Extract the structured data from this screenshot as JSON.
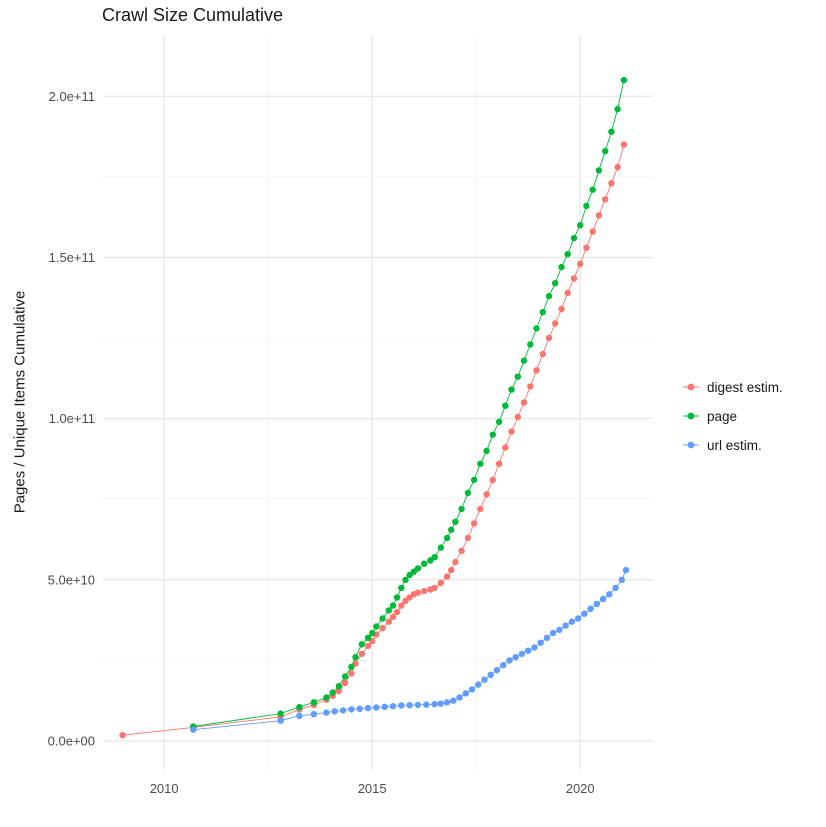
{
  "figure": {
    "title": "Crawl Size Cumulative",
    "y_axis_label": "Pages / Unique Items Cumulative"
  },
  "colors": {
    "background": "#ffffff",
    "grid_major": "#e3e3e3",
    "grid_minor": "#f0f0f0",
    "axis_text": "#4d4d4d",
    "title_text": "#1a1a1a"
  },
  "legend": {
    "items": [
      {
        "label": "digest estim.",
        "color": "#F8766D"
      },
      {
        "label": "page",
        "color": "#00BA38"
      },
      {
        "label": "url estim.",
        "color": "#619CFF"
      }
    ]
  },
  "chart_data": {
    "type": "scatter",
    "title": "Crawl Size Cumulative",
    "xlabel": "",
    "ylabel": "Pages / Unique Items Cumulative",
    "legend_position": "right",
    "grid": true,
    "xlim": [
      2008.53,
      2021.75
    ],
    "ylim": [
      -9000000000.0,
      219000000000.0
    ],
    "x_tick_values": [
      2010,
      2015,
      2020
    ],
    "x_tick_labels": [
      "2010",
      "2015",
      "2020"
    ],
    "x_minor_ticks": [
      2012.5,
      2017.5
    ],
    "y_tick_values": [
      0,
      50000000000.0,
      100000000000.0,
      150000000000.0,
      200000000000.0
    ],
    "y_tick_labels": [
      "0.0e+00",
      "5.0e+10",
      "1.0e+11",
      "1.5e+11",
      "2.0e+11"
    ],
    "y_minor_ticks": [
      25000000000.0,
      75000000000.0,
      125000000000.0,
      175000000000.0
    ],
    "series": [
      {
        "name": "digest estim.",
        "color": "#F8766D",
        "points": [
          [
            2009.0,
            1800000000.0
          ],
          [
            2010.7,
            4200000000.0
          ],
          [
            2012.8,
            7500000000.0
          ],
          [
            2013.25,
            9800000000.0
          ],
          [
            2013.6,
            11200000000.0
          ],
          [
            2013.9,
            12800000000.0
          ],
          [
            2014.05,
            14000000000.0
          ],
          [
            2014.2,
            15500000000.0
          ],
          [
            2014.35,
            18000000000.0
          ],
          [
            2014.5,
            21000000000.0
          ],
          [
            2014.6,
            24000000000.0
          ],
          [
            2014.75,
            27000000000.0
          ],
          [
            2014.9,
            29500000000.0
          ],
          [
            2015.0,
            31000000000.0
          ],
          [
            2015.1,
            33000000000.0
          ],
          [
            2015.25,
            35000000000.0
          ],
          [
            2015.4,
            37000000000.0
          ],
          [
            2015.5,
            38500000000.0
          ],
          [
            2015.6,
            40000000000.0
          ],
          [
            2015.7,
            42000000000.0
          ],
          [
            2015.8,
            43500000000.0
          ],
          [
            2015.9,
            44500000000.0
          ],
          [
            2016.0,
            45500000000.0
          ],
          [
            2016.1,
            46000000000.0
          ],
          [
            2016.25,
            46500000000.0
          ],
          [
            2016.4,
            47000000000.0
          ],
          [
            2016.5,
            47500000000.0
          ],
          [
            2016.65,
            49000000000.0
          ],
          [
            2016.8,
            51000000000.0
          ],
          [
            2016.9,
            53000000000.0
          ],
          [
            2017.0,
            55500000000.0
          ],
          [
            2017.15,
            59000000000.0
          ],
          [
            2017.3,
            63000000000.0
          ],
          [
            2017.45,
            67500000000.0
          ],
          [
            2017.6,
            72000000000.0
          ],
          [
            2017.75,
            76500000000.0
          ],
          [
            2017.9,
            81000000000.0
          ],
          [
            2018.05,
            86000000000.0
          ],
          [
            2018.2,
            91000000000.0
          ],
          [
            2018.35,
            96000000000.0
          ],
          [
            2018.5,
            100500000000.0
          ],
          [
            2018.65,
            105000000000.0
          ],
          [
            2018.8,
            110000000000.0
          ],
          [
            2018.95,
            115000000000.0
          ],
          [
            2019.1,
            120000000000.0
          ],
          [
            2019.25,
            125000000000.0
          ],
          [
            2019.4,
            129500000000.0
          ],
          [
            2019.55,
            134000000000.0
          ],
          [
            2019.7,
            139000000000.0
          ],
          [
            2019.85,
            143500000000.0
          ],
          [
            2020.0,
            148000000000.0
          ],
          [
            2020.15,
            153000000000.0
          ],
          [
            2020.3,
            158000000000.0
          ],
          [
            2020.45,
            163000000000.0
          ],
          [
            2020.6,
            168000000000.0
          ],
          [
            2020.75,
            173000000000.0
          ],
          [
            2020.9,
            178000000000.0
          ],
          [
            2021.05,
            185000000000.0
          ]
        ]
      },
      {
        "name": "page",
        "color": "#00BA38",
        "points": [
          [
            2010.7,
            4500000000.0
          ],
          [
            2012.8,
            8500000000.0
          ],
          [
            2013.25,
            10500000000.0
          ],
          [
            2013.6,
            12000000000.0
          ],
          [
            2013.9,
            13500000000.0
          ],
          [
            2014.05,
            15000000000.0
          ],
          [
            2014.2,
            17000000000.0
          ],
          [
            2014.35,
            20000000000.0
          ],
          [
            2014.5,
            23000000000.0
          ],
          [
            2014.6,
            26000000000.0
          ],
          [
            2014.75,
            30000000000.0
          ],
          [
            2014.9,
            32000000000.0
          ],
          [
            2015.0,
            33500000000.0
          ],
          [
            2015.1,
            35500000000.0
          ],
          [
            2015.25,
            38000000000.0
          ],
          [
            2015.4,
            40500000000.0
          ],
          [
            2015.5,
            42000000000.0
          ],
          [
            2015.6,
            44500000000.0
          ],
          [
            2015.7,
            47500000000.0
          ],
          [
            2015.8,
            50000000000.0
          ],
          [
            2015.9,
            51500000000.0
          ],
          [
            2016.0,
            52500000000.0
          ],
          [
            2016.1,
            53500000000.0
          ],
          [
            2016.25,
            55000000000.0
          ],
          [
            2016.4,
            56000000000.0
          ],
          [
            2016.5,
            57000000000.0
          ],
          [
            2016.65,
            60000000000.0
          ],
          [
            2016.8,
            63000000000.0
          ],
          [
            2016.9,
            65500000000.0
          ],
          [
            2017.0,
            68000000000.0
          ],
          [
            2017.15,
            72000000000.0
          ],
          [
            2017.3,
            77000000000.0
          ],
          [
            2017.45,
            81000000000.0
          ],
          [
            2017.6,
            86000000000.0
          ],
          [
            2017.75,
            90000000000.0
          ],
          [
            2017.9,
            95000000000.0
          ],
          [
            2018.05,
            99000000000.0
          ],
          [
            2018.2,
            104000000000.0
          ],
          [
            2018.35,
            109000000000.0
          ],
          [
            2018.5,
            113000000000.0
          ],
          [
            2018.65,
            118000000000.0
          ],
          [
            2018.8,
            123000000000.0
          ],
          [
            2018.95,
            128000000000.0
          ],
          [
            2019.1,
            133000000000.0
          ],
          [
            2019.25,
            138000000000.0
          ],
          [
            2019.4,
            142000000000.0
          ],
          [
            2019.55,
            147000000000.0
          ],
          [
            2019.7,
            151000000000.0
          ],
          [
            2019.85,
            156000000000.0
          ],
          [
            2020.0,
            160000000000.0
          ],
          [
            2020.15,
            166000000000.0
          ],
          [
            2020.3,
            171000000000.0
          ],
          [
            2020.45,
            177000000000.0
          ],
          [
            2020.6,
            183000000000.0
          ],
          [
            2020.75,
            189000000000.0
          ],
          [
            2020.9,
            196000000000.0
          ],
          [
            2021.05,
            205000000000.0
          ]
        ]
      },
      {
        "name": "url estim.",
        "color": "#619CFF",
        "points": [
          [
            2010.7,
            3500000000.0
          ],
          [
            2012.8,
            6300000000.0
          ],
          [
            2013.25,
            7800000000.0
          ],
          [
            2013.6,
            8300000000.0
          ],
          [
            2013.9,
            8800000000.0
          ],
          [
            2014.1,
            9200000000.0
          ],
          [
            2014.3,
            9500000000.0
          ],
          [
            2014.5,
            9800000000.0
          ],
          [
            2014.7,
            10000000000.0
          ],
          [
            2014.9,
            10200000000.0
          ],
          [
            2015.1,
            10400000000.0
          ],
          [
            2015.3,
            10600000000.0
          ],
          [
            2015.5,
            10800000000.0
          ],
          [
            2015.7,
            11000000000.0
          ],
          [
            2015.9,
            11100000000.0
          ],
          [
            2016.1,
            11200000000.0
          ],
          [
            2016.3,
            11300000000.0
          ],
          [
            2016.5,
            11400000000.0
          ],
          [
            2016.65,
            11600000000.0
          ],
          [
            2016.8,
            12000000000.0
          ],
          [
            2016.95,
            12500000000.0
          ],
          [
            2017.1,
            13500000000.0
          ],
          [
            2017.25,
            14800000000.0
          ],
          [
            2017.4,
            16000000000.0
          ],
          [
            2017.55,
            17500000000.0
          ],
          [
            2017.7,
            19000000000.0
          ],
          [
            2017.85,
            20500000000.0
          ],
          [
            2018.0,
            22000000000.0
          ],
          [
            2018.15,
            23500000000.0
          ],
          [
            2018.3,
            25000000000.0
          ],
          [
            2018.45,
            26000000000.0
          ],
          [
            2018.6,
            27000000000.0
          ],
          [
            2018.75,
            28000000000.0
          ],
          [
            2018.9,
            29000000000.0
          ],
          [
            2019.05,
            30500000000.0
          ],
          [
            2019.2,
            32000000000.0
          ],
          [
            2019.35,
            33500000000.0
          ],
          [
            2019.5,
            34500000000.0
          ],
          [
            2019.65,
            35800000000.0
          ],
          [
            2019.8,
            37000000000.0
          ],
          [
            2019.95,
            38000000000.0
          ],
          [
            2020.1,
            39500000000.0
          ],
          [
            2020.25,
            41000000000.0
          ],
          [
            2020.4,
            42500000000.0
          ],
          [
            2020.55,
            44000000000.0
          ],
          [
            2020.7,
            45500000000.0
          ],
          [
            2020.85,
            47500000000.0
          ],
          [
            2021.0,
            50000000000.0
          ],
          [
            2021.1,
            53000000000.0
          ]
        ]
      }
    ]
  }
}
